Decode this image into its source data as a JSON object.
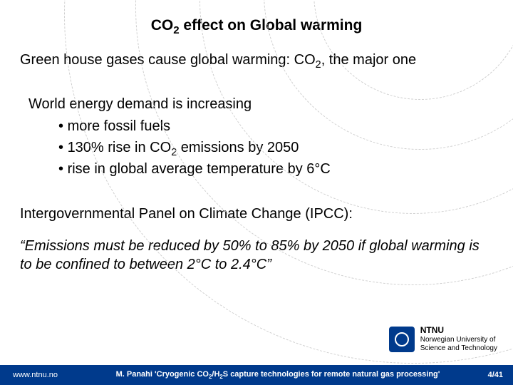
{
  "title": {
    "pre": "CO",
    "sub": "2",
    "post": " effect on Global warming"
  },
  "subtitle": {
    "pre": "Green house gases cause global warming: CO",
    "sub": "2",
    "post": ", the major one"
  },
  "intro": "World energy demand is increasing",
  "bullets": [
    {
      "pre": " more fossil fuels",
      "sub": "",
      "post": ""
    },
    {
      "pre": "130% rise in CO",
      "sub": "2",
      "post": " emissions by 2050"
    },
    {
      "pre": "rise in global average temperature by 6°C",
      "sub": "",
      "post": ""
    }
  ],
  "ipcc": "Intergovernmental Panel on Climate Change (IPCC):",
  "quote": "“Emissions must be reduced by 50% to 85% by 2050 if global warming is to be confined to between 2°C to 2.4°C”",
  "logo": {
    "line1": "NTNU",
    "line2": "Norwegian University of",
    "line3": "Science and Technology"
  },
  "footer": {
    "url": "www.ntnu.no",
    "caption": {
      "pre": "M. Panahi  'Cryogenic CO",
      "sub1": "2",
      "mid": "/H",
      "sub2": "2",
      "post": "S capture technologies for remote natural gas processing'"
    },
    "page": "4/41"
  },
  "colors": {
    "brand": "#003a8c",
    "text": "#000000",
    "bg": "#ffffff",
    "circle": "#cfcfcf"
  }
}
